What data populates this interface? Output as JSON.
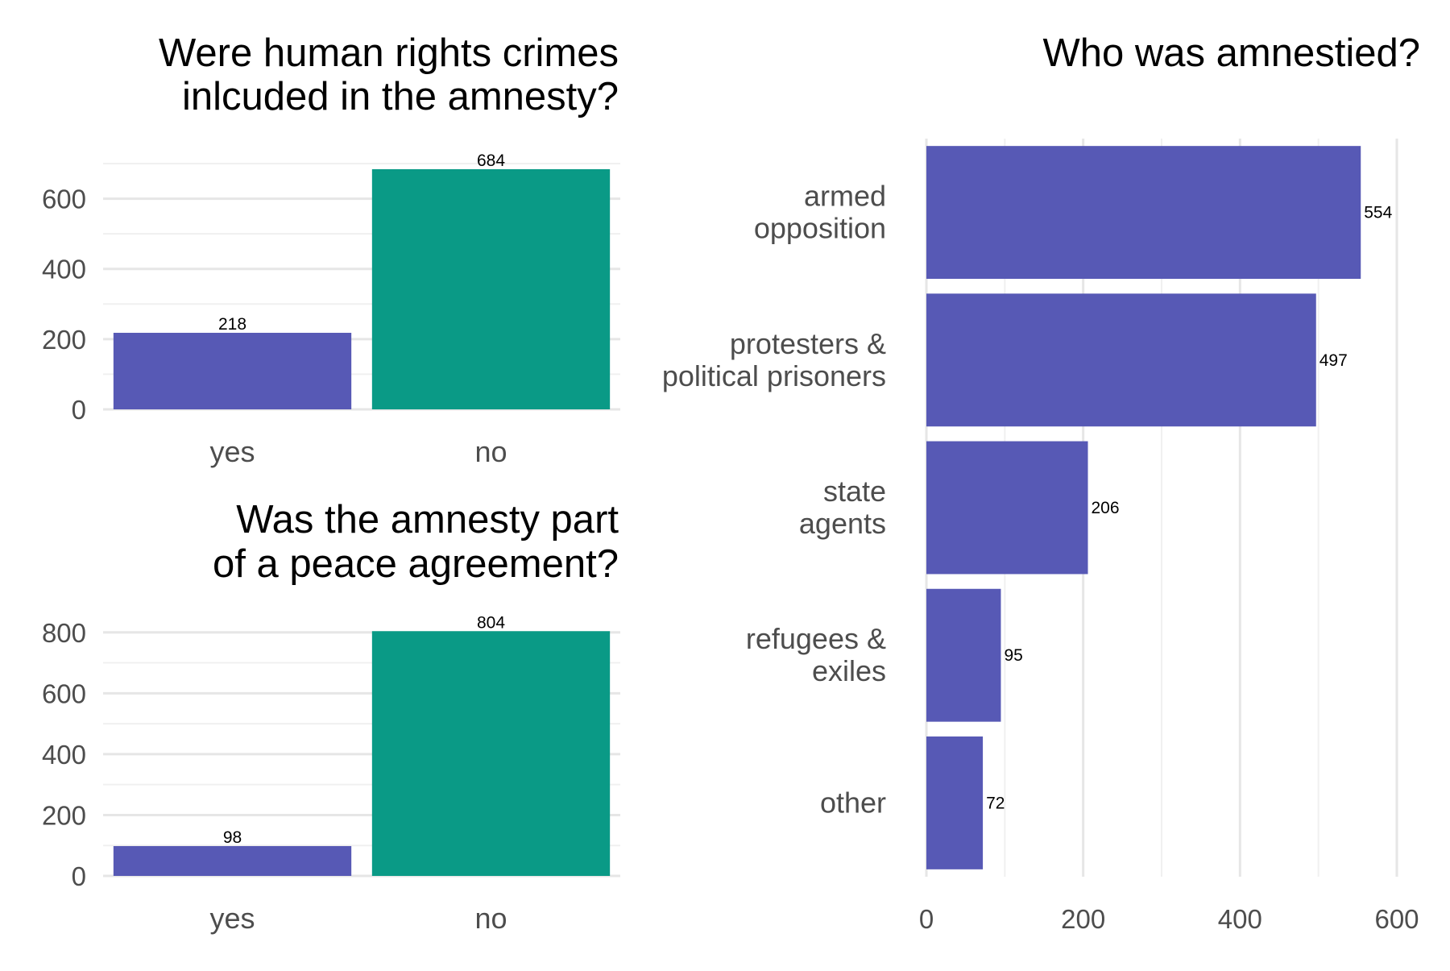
{
  "chart_data": [
    {
      "type": "bar",
      "orientation": "vertical",
      "title": [
        "Were human rights crimes",
        "inlcuded in the amnesty?"
      ],
      "categories": [
        "yes",
        "no"
      ],
      "values": [
        218,
        684
      ],
      "colors": [
        "#5759b5",
        "#0a9a86"
      ],
      "ylim": [
        0,
        700
      ],
      "yticks": [
        0,
        200,
        400,
        600
      ],
      "grid": true,
      "legend": "none"
    },
    {
      "type": "bar",
      "orientation": "vertical",
      "title": [
        "Was the amnesty part",
        "of a peace agreement?"
      ],
      "categories": [
        "yes",
        "no"
      ],
      "values": [
        98,
        804
      ],
      "colors": [
        "#5759b5",
        "#0a9a86"
      ],
      "ylim": [
        0,
        810
      ],
      "yticks": [
        0,
        200,
        400,
        600,
        800
      ],
      "grid": true,
      "legend": "none"
    },
    {
      "type": "bar",
      "orientation": "horizontal",
      "title": [
        "Who was amnestied?"
      ],
      "categories": [
        [
          "armed",
          "opposition"
        ],
        [
          "protesters &",
          "political prisoners"
        ],
        [
          "state",
          "agents"
        ],
        [
          "refugees &",
          "exiles"
        ],
        [
          "other"
        ]
      ],
      "values": [
        554,
        497,
        206,
        95,
        72
      ],
      "colors": [
        "#5759b5"
      ],
      "xlim": [
        0,
        600
      ],
      "xticks": [
        0,
        200,
        400,
        600
      ],
      "grid": true,
      "legend": "none"
    }
  ]
}
